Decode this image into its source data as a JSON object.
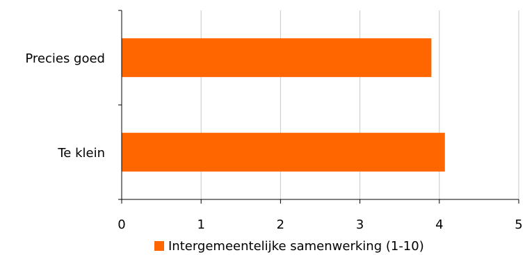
{
  "chart_data": {
    "type": "bar",
    "orientation": "horizontal",
    "categories": [
      "Precies goed",
      "Te klein"
    ],
    "series": [
      {
        "name": "Intergemeentelijke samenwerking (1-10)",
        "values": [
          3.9,
          4.07
        ]
      }
    ],
    "xlim": [
      0,
      5
    ],
    "xticks": [
      "0",
      "1",
      "2",
      "3",
      "4",
      "5"
    ],
    "grid": true,
    "legend": "bottom",
    "bar_color": "#FF6600",
    "grid_color": "#C8C8C8",
    "axis_color": "#000000"
  }
}
